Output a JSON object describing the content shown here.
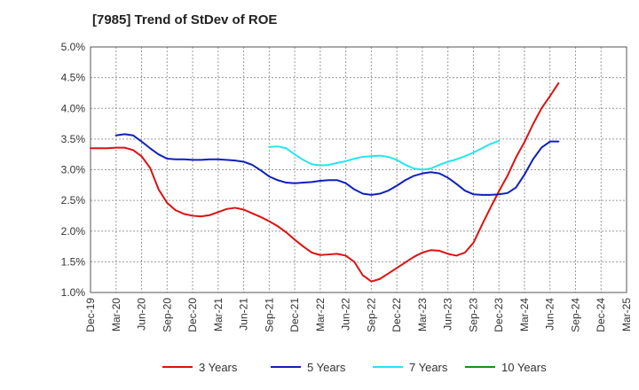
{
  "chart_data": {
    "type": "line",
    "title": "[7985]  Trend of StDev of ROE",
    "xlabel": "",
    "ylabel": "",
    "ylim": [
      0.01,
      0.05
    ],
    "y_ticks": [
      "1.0%",
      "1.5%",
      "2.0%",
      "2.5%",
      "3.0%",
      "3.5%",
      "4.0%",
      "4.5%",
      "5.0%"
    ],
    "x_ticks": [
      "Dec-19",
      "Mar-20",
      "Jun-20",
      "Sep-20",
      "Dec-20",
      "Mar-21",
      "Jun-21",
      "Sep-21",
      "Dec-21",
      "Mar-22",
      "Jun-22",
      "Sep-22",
      "Dec-22",
      "Mar-23",
      "Jun-23",
      "Sep-23",
      "Dec-23",
      "Mar-24",
      "Jun-24",
      "Sep-24",
      "Dec-24",
      "Mar-25"
    ],
    "grid": true,
    "legend_position": "bottom",
    "series": [
      {
        "name": "3 Years",
        "color": "#dd1111",
        "start_index": 0,
        "values": [
          0.0335,
          0.0335,
          0.0335,
          0.0336,
          0.0336,
          0.0332,
          0.0322,
          0.0303,
          0.0268,
          0.0246,
          0.0234,
          0.0228,
          0.0225,
          0.0224,
          0.0226,
          0.0231,
          0.0236,
          0.0238,
          0.0235,
          0.0229,
          0.0223,
          0.0216,
          0.0208,
          0.0198,
          0.0186,
          0.0175,
          0.0165,
          0.0161,
          0.0162,
          0.0163,
          0.016,
          0.015,
          0.0128,
          0.0118,
          0.0122,
          0.0131,
          0.014,
          0.0149,
          0.0158,
          0.0165,
          0.0169,
          0.0168,
          0.0163,
          0.016,
          0.0165,
          0.0181,
          0.021,
          0.0238,
          0.0265,
          0.029,
          0.032,
          0.0345,
          0.0374,
          0.04,
          0.042,
          0.0441
        ]
      },
      {
        "name": "5 Years",
        "color": "#0f1fbf",
        "start_index": 3,
        "values": [
          0.0356,
          0.0358,
          0.0356,
          0.0346,
          0.0335,
          0.0325,
          0.0318,
          0.0317,
          0.0317,
          0.0316,
          0.0316,
          0.0317,
          0.0317,
          0.0316,
          0.0315,
          0.0313,
          0.0308,
          0.0299,
          0.0289,
          0.0283,
          0.0279,
          0.0278,
          0.0279,
          0.028,
          0.0282,
          0.0283,
          0.0283,
          0.0278,
          0.0268,
          0.0261,
          0.0259,
          0.0261,
          0.0266,
          0.0274,
          0.0283,
          0.029,
          0.0294,
          0.0296,
          0.0294,
          0.0287,
          0.0277,
          0.0266,
          0.026,
          0.0259,
          0.0259,
          0.026,
          0.0262,
          0.0271,
          0.0292,
          0.0317,
          0.0336,
          0.0346,
          0.0346
        ]
      },
      {
        "name": "7 Years",
        "color": "#22e6ee",
        "start_index": 21,
        "values": [
          0.0337,
          0.0338,
          0.0335,
          0.0325,
          0.0316,
          0.0309,
          0.0307,
          0.0308,
          0.0311,
          0.0314,
          0.0318,
          0.0321,
          0.0322,
          0.0323,
          0.0321,
          0.0316,
          0.0308,
          0.0302,
          0.03,
          0.0302,
          0.0308,
          0.0313,
          0.0317,
          0.0322,
          0.0328,
          0.0335,
          0.0342,
          0.0347
        ]
      },
      {
        "name": "10 Years",
        "color": "#1f8c1f",
        "start_index": 0,
        "values": []
      }
    ]
  }
}
